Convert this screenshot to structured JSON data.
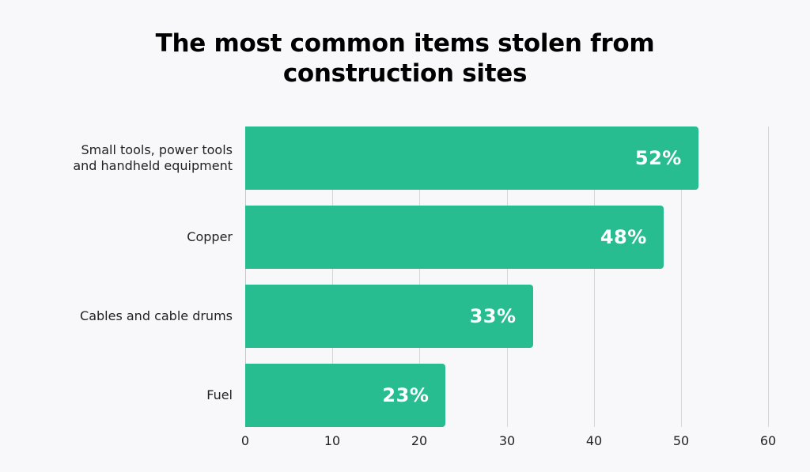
{
  "title": {
    "line1": "The most common items stolen from",
    "line2": "construction sites"
  },
  "colors": {
    "bar": "#27bd91",
    "background": "#f8f8fa",
    "gridline": "#d6d6d6",
    "text": "#222222"
  },
  "bars": [
    {
      "label_line1": "Small tools, power tools",
      "label_line2": "and handheld equipment",
      "value": 52,
      "value_label": "52%"
    },
    {
      "label_line1": "Copper",
      "label_line2": "",
      "value": 48,
      "value_label": "48%"
    },
    {
      "label_line1": "Cables and cable drums",
      "label_line2": "",
      "value": 33,
      "value_label": "33%"
    },
    {
      "label_line1": "Fuel",
      "label_line2": "",
      "value": 23,
      "value_label": "23%"
    }
  ],
  "x_ticks": [
    "0",
    "10",
    "20",
    "30",
    "40",
    "50",
    "60"
  ],
  "chart_data": {
    "type": "bar",
    "orientation": "horizontal",
    "title": "The most common items stolen from construction sites",
    "categories": [
      "Small tools, power tools and handheld equipment",
      "Copper",
      "Cables and cable drums",
      "Fuel"
    ],
    "values": [
      52,
      48,
      33,
      23
    ],
    "data_labels": [
      "52%",
      "48%",
      "33%",
      "23%"
    ],
    "xlabel": "",
    "ylabel": "",
    "xlim": [
      0,
      60
    ],
    "x_ticks": [
      0,
      10,
      20,
      30,
      40,
      50,
      60
    ],
    "grid": "vertical",
    "legend": "none",
    "unit": "%"
  }
}
